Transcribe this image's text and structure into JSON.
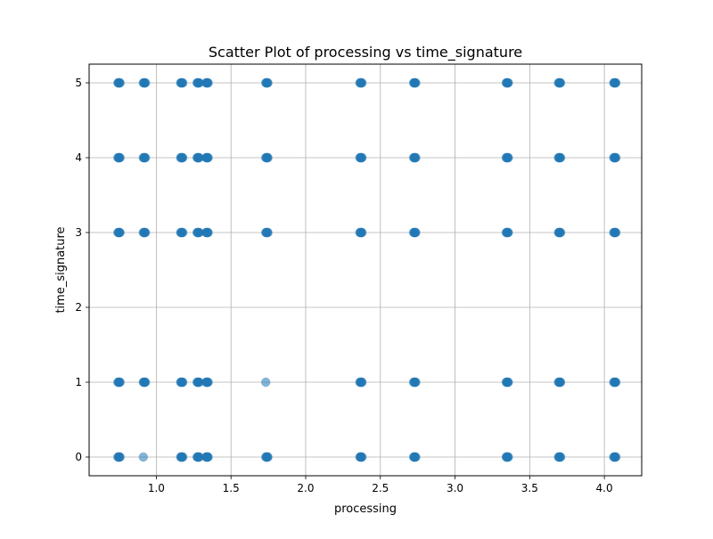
{
  "chart_data": {
    "type": "scatter",
    "title": "Scatter Plot of processing vs time_signature",
    "xlabel": "processing",
    "ylabel": "time_signature",
    "xlim": [
      0.55,
      4.25
    ],
    "ylim": [
      -0.25,
      5.25
    ],
    "xticks": [
      1.0,
      1.5,
      2.0,
      2.5,
      3.0,
      3.5,
      4.0
    ],
    "xtick_labels": [
      "1.0",
      "1.5",
      "2.0",
      "2.5",
      "3.0",
      "3.5",
      "4.0"
    ],
    "yticks": [
      0,
      1,
      2,
      3,
      4,
      5
    ],
    "ytick_labels": [
      "0",
      "1",
      "2",
      "3",
      "4",
      "5"
    ],
    "grid": true,
    "marker_color": "#1f77b4",
    "points": [
      {
        "x": 0.75,
        "y": 0
      },
      {
        "x": 0.75,
        "y": 1
      },
      {
        "x": 0.75,
        "y": 3
      },
      {
        "x": 0.75,
        "y": 4
      },
      {
        "x": 0.75,
        "y": 5
      },
      {
        "x": 0.92,
        "y": 0
      },
      {
        "x": 0.92,
        "y": 1
      },
      {
        "x": 0.92,
        "y": 3
      },
      {
        "x": 0.92,
        "y": 4
      },
      {
        "x": 0.92,
        "y": 5
      },
      {
        "x": 1.17,
        "y": 0
      },
      {
        "x": 1.17,
        "y": 1
      },
      {
        "x": 1.17,
        "y": 3
      },
      {
        "x": 1.17,
        "y": 4
      },
      {
        "x": 1.17,
        "y": 5
      },
      {
        "x": 1.28,
        "y": 0
      },
      {
        "x": 1.28,
        "y": 1
      },
      {
        "x": 1.28,
        "y": 3
      },
      {
        "x": 1.28,
        "y": 4
      },
      {
        "x": 1.28,
        "y": 5
      },
      {
        "x": 1.34,
        "y": 0
      },
      {
        "x": 1.34,
        "y": 1
      },
      {
        "x": 1.34,
        "y": 3
      },
      {
        "x": 1.34,
        "y": 4
      },
      {
        "x": 1.34,
        "y": 5
      },
      {
        "x": 1.74,
        "y": 0
      },
      {
        "x": 1.74,
        "y": 1
      },
      {
        "x": 1.74,
        "y": 3
      },
      {
        "x": 1.74,
        "y": 4
      },
      {
        "x": 1.74,
        "y": 5
      },
      {
        "x": 2.37,
        "y": 0
      },
      {
        "x": 2.37,
        "y": 1
      },
      {
        "x": 2.37,
        "y": 3
      },
      {
        "x": 2.37,
        "y": 4
      },
      {
        "x": 2.37,
        "y": 5
      },
      {
        "x": 2.73,
        "y": 0
      },
      {
        "x": 2.73,
        "y": 1
      },
      {
        "x": 2.73,
        "y": 3
      },
      {
        "x": 2.73,
        "y": 4
      },
      {
        "x": 2.73,
        "y": 5
      },
      {
        "x": 3.35,
        "y": 0
      },
      {
        "x": 3.35,
        "y": 1
      },
      {
        "x": 3.35,
        "y": 3
      },
      {
        "x": 3.35,
        "y": 4
      },
      {
        "x": 3.35,
        "y": 5
      },
      {
        "x": 3.7,
        "y": 0
      },
      {
        "x": 3.7,
        "y": 1
      },
      {
        "x": 3.7,
        "y": 3
      },
      {
        "x": 3.7,
        "y": 4
      },
      {
        "x": 3.7,
        "y": 5
      },
      {
        "x": 4.07,
        "y": 0
      },
      {
        "x": 4.07,
        "y": 1
      },
      {
        "x": 4.07,
        "y": 3
      },
      {
        "x": 4.07,
        "y": 4
      },
      {
        "x": 4.07,
        "y": 5
      }
    ],
    "light_points": [
      {
        "x": 0.92,
        "y": 0
      },
      {
        "x": 1.74,
        "y": 1
      }
    ]
  }
}
